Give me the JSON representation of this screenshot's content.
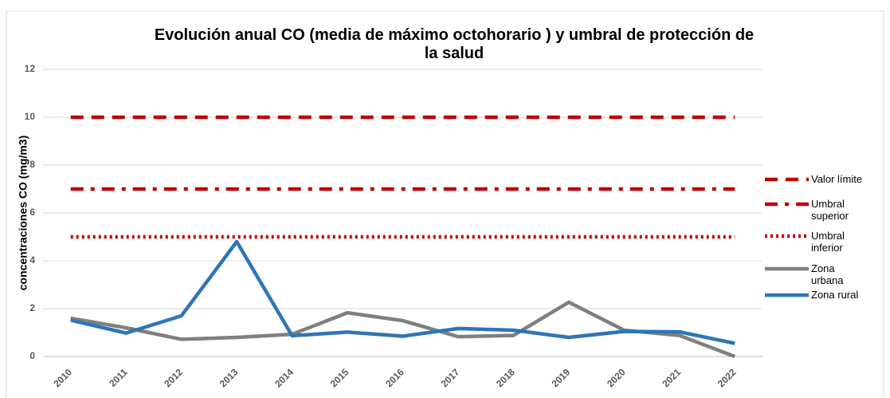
{
  "chart_data": {
    "type": "line",
    "title": "Evolución anual CO (media de máximo octohorario ) y umbral de protección de la salud",
    "y_label": "concentraciones CO (mg/m3)",
    "categories": [
      "2010",
      "2011",
      "2012",
      "2013",
      "2014",
      "2015",
      "2016",
      "2017",
      "2018",
      "2019",
      "2020",
      "2021",
      "2022"
    ],
    "series": [
      {
        "name": "Valor límite",
        "color": "#c00000",
        "dash": "dashed",
        "values": [
          10,
          10,
          10,
          10,
          10,
          10,
          10,
          10,
          10,
          10,
          10,
          10,
          10
        ]
      },
      {
        "name": "Umbral superior",
        "color": "#c00000",
        "dash": "dashdot",
        "values": [
          7,
          7,
          7,
          7,
          7,
          7,
          7,
          7,
          7,
          7,
          7,
          7,
          7
        ]
      },
      {
        "name": "Umbral inferior",
        "color": "#c00000",
        "dash": "dotted",
        "values": [
          5,
          5,
          5,
          5,
          5,
          5,
          5,
          5,
          5,
          5,
          5,
          5,
          5
        ]
      },
      {
        "name": "Zona urbana",
        "color": "#7f7f7f",
        "dash": "solid",
        "values": [
          1.6,
          1.2,
          0.72,
          0.8,
          0.93,
          1.83,
          1.5,
          0.83,
          0.88,
          2.27,
          1.1,
          0.88,
          0
        ]
      },
      {
        "name": "Zona rural",
        "color": "#2e75b6",
        "dash": "solid",
        "values": [
          1.52,
          0.98,
          1.7,
          4.8,
          0.87,
          1.02,
          0.85,
          1.17,
          1.1,
          0.8,
          1.05,
          1.03,
          0.55
        ]
      }
    ],
    "ylim": [
      0,
      12
    ],
    "yticks": [
      0,
      2,
      4,
      6,
      8,
      10,
      12
    ],
    "grid": true,
    "legend": "right"
  }
}
